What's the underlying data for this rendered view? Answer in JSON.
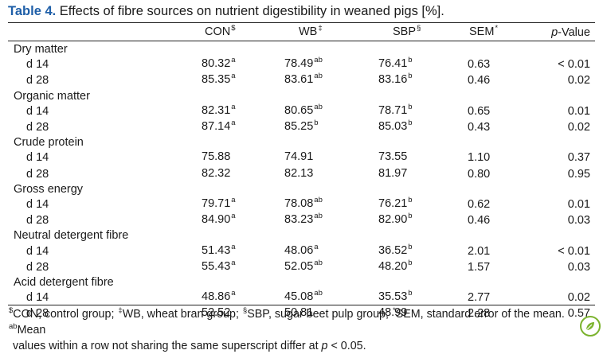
{
  "caption": {
    "label": "Table 4.",
    "text": " Effects of fibre sources on nutrient digestibility in weaned pigs [%]."
  },
  "columns": [
    {
      "name": "CON",
      "sup": "$"
    },
    {
      "name": "WB",
      "sup": "‡"
    },
    {
      "name": "SBP",
      "sup": "§"
    },
    {
      "name": "SEM",
      "sup": "*"
    },
    {
      "name_italic": "p",
      "name_rest": "-Value"
    }
  ],
  "groups": [
    {
      "name": "Dry matter",
      "rows": [
        {
          "label": "d 14",
          "con": "80.32",
          "con_s": "a",
          "wb": "78.49",
          "wb_s": "ab",
          "sbp": "76.41",
          "sbp_s": "b",
          "sem": "0.63",
          "p": "< 0.01"
        },
        {
          "label": "d 28",
          "con": "85.35",
          "con_s": "a",
          "wb": "83.61",
          "wb_s": "ab",
          "sbp": "83.16",
          "sbp_s": "b",
          "sem": "0.46",
          "p": "0.02"
        }
      ]
    },
    {
      "name": "Organic matter",
      "rows": [
        {
          "label": "d 14",
          "con": "82.31",
          "con_s": "a",
          "wb": "80.65",
          "wb_s": "ab",
          "sbp": "78.71",
          "sbp_s": "b",
          "sem": "0.65",
          "p": "0.01"
        },
        {
          "label": "d 28",
          "con": "87.14",
          "con_s": "a",
          "wb": "85.25",
          "wb_s": "b",
          "sbp": "85.03",
          "sbp_s": "b",
          "sem": "0.43",
          "p": "0.02"
        }
      ]
    },
    {
      "name": "Crude protein",
      "rows": [
        {
          "label": "d 14",
          "con": "75.88",
          "con_s": "",
          "wb": "74.91",
          "wb_s": "",
          "sbp": "73.55",
          "sbp_s": "",
          "sem": "1.10",
          "p": "0.37"
        },
        {
          "label": "d 28",
          "con": "82.32",
          "con_s": "",
          "wb": "82.13",
          "wb_s": "",
          "sbp": "81.97",
          "sbp_s": "",
          "sem": "0.80",
          "p": "0.95"
        }
      ]
    },
    {
      "name": "Gross energy",
      "rows": [
        {
          "label": "d 14",
          "con": "79.71",
          "con_s": "a",
          "wb": "78.08",
          "wb_s": "ab",
          "sbp": "76.21",
          "sbp_s": "b",
          "sem": "0.62",
          "p": "0.01"
        },
        {
          "label": "d 28",
          "con": "84.90",
          "con_s": "a",
          "wb": "83.23",
          "wb_s": "ab",
          "sbp": "82.90",
          "sbp_s": "b",
          "sem": "0.46",
          "p": "0.03"
        }
      ]
    },
    {
      "name": "Neutral detergent fibre",
      "rows": [
        {
          "label": "d 14",
          "con": "51.43",
          "con_s": "a",
          "wb": "48.06",
          "wb_s": "a",
          "sbp": "36.52",
          "sbp_s": "b",
          "sem": "2.01",
          "p": "< 0.01"
        },
        {
          "label": "d 28",
          "con": "55.43",
          "con_s": "a",
          "wb": "52.05",
          "wb_s": "ab",
          "sbp": "48.20",
          "sbp_s": "b",
          "sem": "1.57",
          "p": "0.03"
        }
      ]
    },
    {
      "name": "Acid detergent fibre",
      "rows": [
        {
          "label": "d 14",
          "con": "48.86",
          "con_s": "a",
          "wb": "45.08",
          "wb_s": "ab",
          "sbp": "35.53",
          "sbp_s": "b",
          "sem": "2.77",
          "p": "0.02"
        },
        {
          "label": "d 28",
          "con": "52.52",
          "con_s": "",
          "wb": "50.81",
          "wb_s": "",
          "sbp": "48.99",
          "sbp_s": "",
          "sem": "2.28",
          "p": "0.57"
        }
      ]
    }
  ],
  "footnote": {
    "s1": "$",
    "t1": "CON, control group; ",
    "s2": "‡",
    "t2": "WB, wheat bran group; ",
    "s3": "§",
    "t3": "SBP, sugar beet pulp group; ",
    "s4": "*",
    "t4": "SEM, standard error of the mean. ",
    "s5": "ab",
    "t5": "Mean",
    "line2_a": "values within a row not sharing the same superscript differ at ",
    "line2_p": "p",
    "line2_b": " < 0.05."
  },
  "colors": {
    "caption_label": "#1f5fa8",
    "badge": "#7bb32e"
  },
  "icons": {
    "badge": "leaf-badge-icon"
  }
}
